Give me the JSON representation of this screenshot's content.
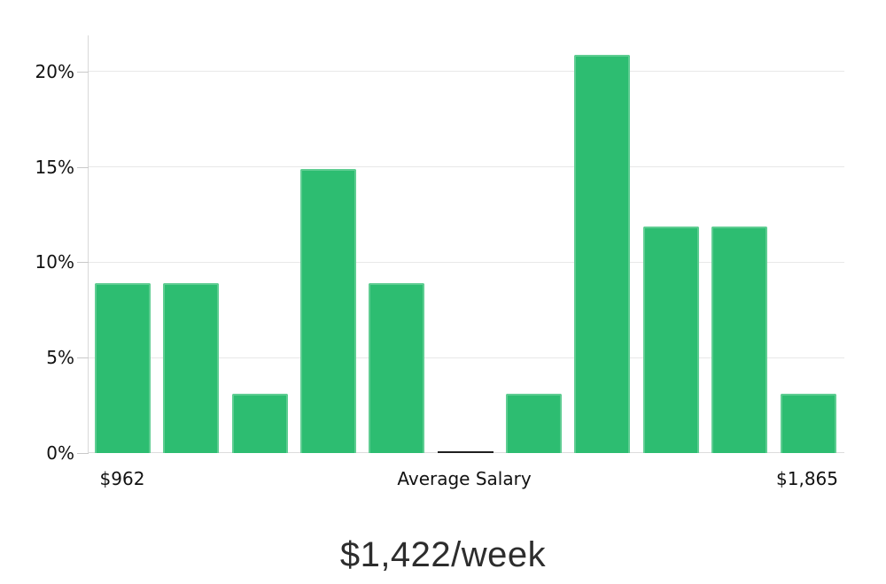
{
  "chart_data": {
    "type": "bar",
    "title": "$1,422/week",
    "values": [
      8.9,
      8.9,
      3.1,
      14.9,
      8.9,
      0,
      3.1,
      20.9,
      11.9,
      11.9,
      3.1
    ],
    "y_ticks": [
      "0%",
      "5%",
      "10%",
      "15%",
      "20%"
    ],
    "y_tick_values": [
      0,
      5,
      10,
      15,
      20
    ],
    "ylim": [
      0,
      21.9
    ],
    "x_axis_labels": [
      {
        "text": "$962",
        "bar_index": 0
      },
      {
        "text": "Average Salary",
        "bar_index": 5
      },
      {
        "text": "$1,865",
        "bar_index": 10
      }
    ],
    "grid": true,
    "legend": "none",
    "colors": {
      "bar_fill": "#2dbd71",
      "bar_border": "#5fcd92",
      "zero_bar": "#1f1f1f",
      "gridline": "#e8e8e8",
      "axis_line": "#d9d9d9",
      "tick": "#c9c9c9",
      "axis_text": "#111111",
      "title_text": "#2d2d2d"
    }
  }
}
